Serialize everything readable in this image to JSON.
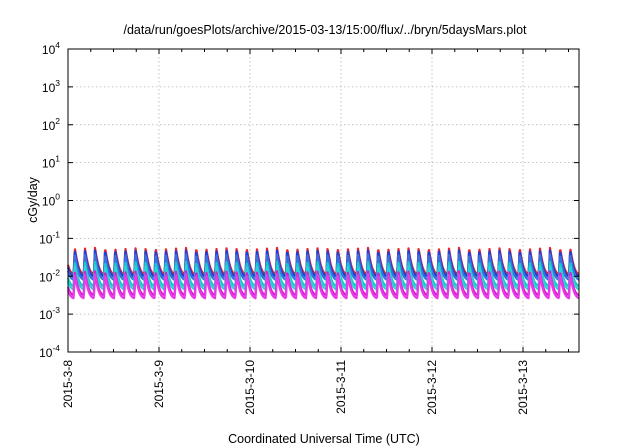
{
  "chart_data": {
    "type": "line",
    "title": "/data/run/goesPlots/archive/2015-03-13/15:00/flux/../bryn/5daysMars.plot",
    "xlabel": "Coordinated Universal Time (UTC)",
    "ylabel": "cGy/day",
    "yscale": "log",
    "ylim": [
      0.0001,
      10000
    ],
    "y_ticks": [
      {
        "base": "10",
        "exp": "-4"
      },
      {
        "base": "10",
        "exp": "-3"
      },
      {
        "base": "10",
        "exp": "-2"
      },
      {
        "base": "10",
        "exp": "-1"
      },
      {
        "base": "10",
        "exp": "0"
      },
      {
        "base": "10",
        "exp": "1"
      },
      {
        "base": "10",
        "exp": "2"
      },
      {
        "base": "10",
        "exp": "3"
      },
      {
        "base": "10",
        "exp": "4"
      }
    ],
    "xlim": [
      "2015-03-08",
      "2015-03-13 15:00"
    ],
    "x_ticks": [
      "2015-3-8",
      "2015-3-9",
      "2015-3-10",
      "2015-3-11",
      "2015-3-12",
      "2015-3-13"
    ],
    "grid": true,
    "pulses_per_day": 9,
    "series": [
      {
        "color": "#e8262b",
        "peak": 0.056,
        "base": 0.0105
      },
      {
        "color": "#1d3fd6",
        "peak": 0.048,
        "base": 0.0092
      },
      {
        "color": "#3a6fe0",
        "peak": 0.038,
        "base": 0.0076
      },
      {
        "color": "#19c7c7",
        "peak": 0.024,
        "base": 0.0052
      },
      {
        "color": "#2bd4d4",
        "peak": 0.019,
        "base": 0.0043
      },
      {
        "color": "#d51fd3",
        "peak": 0.0135,
        "base": 0.003
      },
      {
        "color": "#e83ae6",
        "peak": 0.0112,
        "base": 0.0025
      }
    ]
  }
}
